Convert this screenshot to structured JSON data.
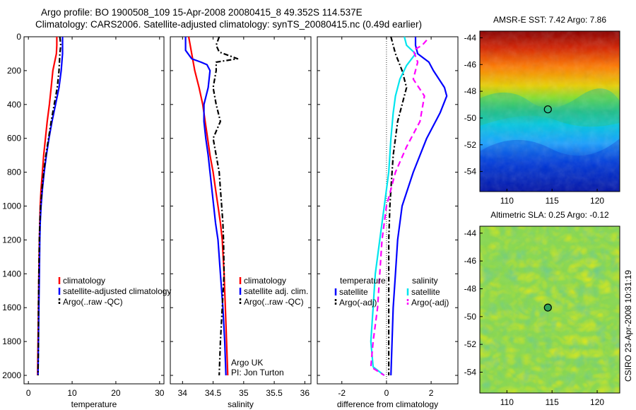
{
  "title": {
    "line1": "Argo profile: BO 1900508_109 15-Apr-2008 20080415_8 49.352S 114.537E",
    "line2": "Climatology: CARS2006. Satellite-adjusted climatology: synTS_20080415.nc (0.49d earlier)"
  },
  "side_label": "CSIRO 23-Apr-2008 10:31:19",
  "colors": {
    "climatology": "#ff0000",
    "satellite": "#0000ff",
    "satellite_salinity": "#00e5ee",
    "argo": "#000000",
    "argo_salinity_adj": "#ff00ff"
  },
  "chart_data": [
    {
      "type": "line",
      "panel": "temperature",
      "xlabel": "temperature",
      "ylabel": "",
      "xlim": [
        -1,
        31
      ],
      "ylim": [
        2050,
        0
      ],
      "xticks": [
        0,
        10,
        20,
        30
      ],
      "yticks": [
        0,
        200,
        400,
        600,
        800,
        1000,
        1200,
        1400,
        1600,
        1800,
        2000
      ],
      "legend": [
        "climatology",
        "satellite-adjusted climatology",
        "Argo(..raw -QC)"
      ],
      "series": [
        {
          "name": "climatology",
          "style": "solid",
          "color_key": "climatology",
          "points": [
            [
              6.5,
              0
            ],
            [
              6.5,
              50
            ],
            [
              6.4,
              100
            ],
            [
              6.0,
              150
            ],
            [
              5.6,
              200
            ],
            [
              5.2,
              300
            ],
            [
              4.8,
              400
            ],
            [
              4.3,
              500
            ],
            [
              3.9,
              600
            ],
            [
              3.5,
              700
            ],
            [
              3.2,
              800
            ],
            [
              2.9,
              900
            ],
            [
              2.7,
              1000
            ],
            [
              2.6,
              1100
            ],
            [
              2.5,
              1200
            ],
            [
              2.4,
              1400
            ],
            [
              2.3,
              1600
            ],
            [
              2.2,
              1800
            ],
            [
              2.1,
              2000
            ]
          ]
        },
        {
          "name": "satellite-adjusted climatology",
          "style": "solid",
          "color_key": "satellite",
          "points": [
            [
              7.8,
              0
            ],
            [
              7.8,
              50
            ],
            [
              7.8,
              100
            ],
            [
              7.5,
              200
            ],
            [
              7.0,
              300
            ],
            [
              6.2,
              400
            ],
            [
              5.4,
              500
            ],
            [
              4.7,
              600
            ],
            [
              4.1,
              700
            ],
            [
              3.6,
              800
            ],
            [
              3.2,
              900
            ],
            [
              2.9,
              1000
            ],
            [
              2.7,
              1100
            ],
            [
              2.6,
              1200
            ],
            [
              2.5,
              1400
            ],
            [
              2.4,
              1600
            ],
            [
              2.3,
              1800
            ],
            [
              2.2,
              2000
            ]
          ]
        },
        {
          "name": "Argo(..raw -QC)",
          "style": "dash-dot",
          "color_key": "argo",
          "points": [
            [
              7.2,
              0
            ],
            [
              7.4,
              50
            ],
            [
              7.2,
              100
            ],
            [
              7.0,
              200
            ],
            [
              6.6,
              300
            ],
            [
              5.9,
              400
            ],
            [
              5.2,
              500
            ],
            [
              4.6,
              600
            ],
            [
              4.0,
              700
            ],
            [
              3.5,
              800
            ],
            [
              3.1,
              900
            ],
            [
              2.8,
              1000
            ],
            [
              2.6,
              1100
            ],
            [
              2.5,
              1200
            ],
            [
              2.4,
              1400
            ],
            [
              2.3,
              1600
            ],
            [
              2.3,
              1800
            ],
            [
              2.2,
              2000
            ]
          ]
        }
      ]
    },
    {
      "type": "line",
      "panel": "salinity",
      "xlabel": "salinity",
      "ylabel": "",
      "xlim": [
        33.8,
        36.1
      ],
      "ylim": [
        2050,
        0
      ],
      "xticks": [
        34,
        34.5,
        35,
        35.5,
        36
      ],
      "legend": [
        "climatology",
        "satellite adj. clim.",
        "Argo(..raw -QC)"
      ],
      "annotation": [
        "Argo UK",
        "PI: Jon Turton"
      ],
      "series": [
        {
          "name": "climatology",
          "style": "solid",
          "color_key": "climatology",
          "points": [
            [
              34.1,
              0
            ],
            [
              34.13,
              60
            ],
            [
              34.15,
              100
            ],
            [
              34.2,
              200
            ],
            [
              34.27,
              300
            ],
            [
              34.33,
              400
            ],
            [
              34.37,
              500
            ],
            [
              34.41,
              600
            ],
            [
              34.45,
              700
            ],
            [
              34.5,
              800
            ],
            [
              34.54,
              900
            ],
            [
              34.58,
              1000
            ],
            [
              34.62,
              1100
            ],
            [
              34.65,
              1200
            ],
            [
              34.68,
              1400
            ],
            [
              34.7,
              1600
            ],
            [
              34.72,
              1800
            ],
            [
              34.74,
              2000
            ]
          ]
        },
        {
          "name": "satellite adj. clim.",
          "style": "solid",
          "color_key": "satellite",
          "points": [
            [
              34.05,
              0
            ],
            [
              34.05,
              80
            ],
            [
              34.15,
              130
            ],
            [
              34.3,
              150
            ],
            [
              34.4,
              165
            ],
            [
              34.45,
              200
            ],
            [
              34.42,
              300
            ],
            [
              34.35,
              400
            ],
            [
              34.35,
              500
            ],
            [
              34.38,
              600
            ],
            [
              34.42,
              700
            ],
            [
              34.45,
              800
            ],
            [
              34.48,
              900
            ],
            [
              34.51,
              1000
            ],
            [
              34.54,
              1100
            ],
            [
              34.58,
              1200
            ],
            [
              34.62,
              1400
            ],
            [
              34.66,
              1600
            ],
            [
              34.69,
              1800
            ],
            [
              34.71,
              2000
            ]
          ]
        },
        {
          "name": "Argo(..raw -QC)",
          "style": "dash-dot",
          "color_key": "argo",
          "points": [
            [
              34.6,
              0
            ],
            [
              34.55,
              50
            ],
            [
              34.6,
              90
            ],
            [
              34.9,
              130
            ],
            [
              34.55,
              150
            ],
            [
              34.55,
              200
            ],
            [
              34.5,
              300
            ],
            [
              34.55,
              400
            ],
            [
              34.62,
              500
            ],
            [
              34.5,
              600
            ],
            [
              34.55,
              700
            ],
            [
              34.6,
              800
            ],
            [
              34.62,
              900
            ],
            [
              34.64,
              1000
            ],
            [
              34.66,
              1100
            ],
            [
              34.67,
              1200
            ],
            [
              34.68,
              1400
            ],
            [
              34.65,
              1600
            ],
            [
              34.62,
              1800
            ],
            [
              34.6,
              2000
            ]
          ]
        }
      ]
    },
    {
      "type": "line",
      "panel": "difference",
      "xlabel": "difference from climatology",
      "ylabel": "",
      "xlim": [
        -3.1,
        3.2
      ],
      "ylim": [
        2050,
        0
      ],
      "xticks": [
        -2,
        0,
        2
      ],
      "legend_temperature_title": "temperature",
      "legend_temperature": [
        "satellite",
        "Argo(-adj)"
      ],
      "legend_salinity_title": "salinity",
      "legend_salinity": [
        "satellite",
        "Argo(-adj)"
      ],
      "series": [
        {
          "name": "temperature satellite",
          "style": "solid",
          "color_key": "satellite",
          "points": [
            [
              1.3,
              0
            ],
            [
              1.3,
              50
            ],
            [
              1.4,
              100
            ],
            [
              1.9,
              150
            ],
            [
              2.1,
              200
            ],
            [
              2.6,
              300
            ],
            [
              2.7,
              350
            ],
            [
              2.4,
              450
            ],
            [
              1.8,
              600
            ],
            [
              1.2,
              800
            ],
            [
              0.7,
              1000
            ],
            [
              0.5,
              1200
            ],
            [
              0.4,
              1400
            ],
            [
              0.3,
              1600
            ],
            [
              0.25,
              1800
            ],
            [
              0.2,
              2000
            ]
          ]
        },
        {
          "name": "temperature Argo(-adj)",
          "style": "dash-dot",
          "color_key": "argo",
          "points": [
            [
              0.2,
              0
            ],
            [
              0.3,
              50
            ],
            [
              0.4,
              100
            ],
            [
              0.7,
              200
            ],
            [
              0.9,
              300
            ],
            [
              0.7,
              400
            ],
            [
              0.5,
              500
            ],
            [
              0.4,
              600
            ],
            [
              0.3,
              700
            ],
            [
              0.25,
              800
            ],
            [
              0.2,
              900
            ],
            [
              0.15,
              1000
            ],
            [
              0.1,
              1200
            ],
            [
              0.1,
              1400
            ],
            [
              0.1,
              1600
            ],
            [
              0.1,
              1800
            ],
            [
              0.1,
              2000
            ]
          ]
        },
        {
          "name": "salinity satellite",
          "style": "solid",
          "color_key": "satellite_salinity",
          "points": [
            [
              0.8,
              0
            ],
            [
              0.9,
              50
            ],
            [
              1.3,
              100
            ],
            [
              0.9,
              170
            ],
            [
              0.6,
              250
            ],
            [
              0.4,
              350
            ],
            [
              0.3,
              450
            ],
            [
              0.2,
              600
            ],
            [
              0.1,
              800
            ],
            [
              -0.1,
              1000
            ],
            [
              -0.3,
              1200
            ],
            [
              -0.5,
              1400
            ],
            [
              -0.6,
              1600
            ],
            [
              -0.7,
              1800
            ],
            [
              -0.6,
              1950
            ],
            [
              -0.1,
              2000
            ]
          ]
        },
        {
          "name": "salinity Argo(-adj)",
          "style": "dashed",
          "color_key": "argo_salinity_adj",
          "points": [
            [
              1.8,
              20
            ],
            [
              1.6,
              50
            ],
            [
              1.2,
              80
            ],
            [
              1.4,
              150
            ],
            [
              1.2,
              250
            ],
            [
              1.7,
              350
            ],
            [
              1.5,
              500
            ],
            [
              0.9,
              650
            ],
            [
              0.4,
              800
            ],
            [
              0.0,
              1000
            ],
            [
              -0.2,
              1200
            ],
            [
              -0.3,
              1400
            ],
            [
              -0.4,
              1600
            ],
            [
              -0.6,
              1800
            ],
            [
              -0.7,
              1950
            ],
            [
              -0.1,
              2000
            ]
          ]
        }
      ]
    },
    {
      "type": "heatmap",
      "panel": "sst-map",
      "title": "AMSR-E SST: 7.42 Argo: 7.86",
      "xlim": [
        107,
        122.5
      ],
      "ylim": [
        -55.5,
        -43.5
      ],
      "xticks": [
        110,
        115,
        120
      ],
      "yticks": [
        -44,
        -46,
        -48,
        -50,
        -52,
        -54
      ],
      "marker": {
        "lon": 114.537,
        "lat": -49.352
      }
    },
    {
      "type": "heatmap",
      "panel": "sla-map",
      "title": "Altimetric SLA: 0.25 Argo: -0.12",
      "xlim": [
        107,
        122.5
      ],
      "ylim": [
        -55.5,
        -43.5
      ],
      "xticks": [
        110,
        115,
        120
      ],
      "yticks": [
        -44,
        -46,
        -48,
        -50,
        -52,
        -54
      ],
      "marker": {
        "lon": 114.537,
        "lat": -49.352
      }
    }
  ]
}
